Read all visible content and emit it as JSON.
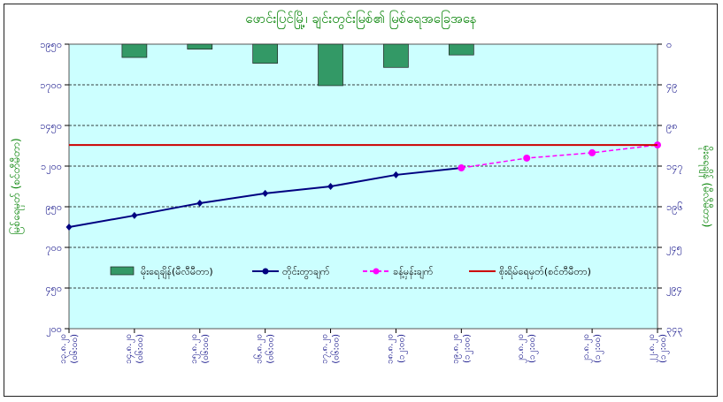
{
  "chart_data": {
    "type": "bar+line",
    "title": "ဖောင်းပြင်မြို့၊ ချင်းတွင်းမြစ်၏ မြစ်ရေအခြေအနေ",
    "ylabel_left": "မြစ်ရေမှတ် (စင်တီမီတာ)",
    "ylabel_right": "မိုးရေချိန် (မီလီမီတာ)",
    "left_axis": {
      "min": 200,
      "max": 1950,
      "ticks": [
        "၁၉၅၀",
        "၁၇၀၀",
        "၁၄၅၀",
        "၁၂၀၀",
        "၉၅၀",
        "၇၀၀",
        "၄၅၀",
        "၂၀၀"
      ],
      "tick_values": [
        1950,
        1700,
        1450,
        1200,
        950,
        700,
        450,
        200
      ]
    },
    "right_axis": {
      "min": 0,
      "max": 343,
      "inverted": true,
      "ticks": [
        "၀",
        "၄၉",
        "၉၈",
        "၁၄၇",
        "၁၉၆",
        "၂၄၅",
        "၂၉၄",
        "၃၄၃"
      ],
      "tick_values": [
        0,
        49,
        98,
        147,
        196,
        245,
        294,
        343
      ]
    },
    "categories": [
      {
        "date": "၁၃.၈.၂၀",
        "time": "(၀၆:၀၀)"
      },
      {
        "date": "၁၄.၈.၂၀",
        "time": "(၀၆:၀၀)"
      },
      {
        "date": "၁၅.၈.၂၀",
        "time": "(၀၆:၀၀)"
      },
      {
        "date": "၁၆.၈.၂၀",
        "time": "(၀၆:၀၀)"
      },
      {
        "date": "၁၇.၈.၂၀",
        "time": "(၀၆:၀၀)"
      },
      {
        "date": "၁၈.၈.၂၀",
        "time": "(၁၂:၀၀)"
      },
      {
        "date": "၁၉.၈.၂၀",
        "time": "(၁၂:၀၀)"
      },
      {
        "date": "၂၀.၈.၂၀",
        "time": "(၁၂:၀၀)"
      },
      {
        "date": "၂၁.၈.၂၀",
        "time": "(၁၂:၀၀)"
      },
      {
        "date": "၂၂.၈.၂၀",
        "time": "(၁၂:၀၀)"
      }
    ],
    "series": [
      {
        "name": "မိုးရေချိန်(မီလီမီတာ)",
        "type": "bar",
        "axis": "right",
        "color": "#339966",
        "values": [
          null,
          16,
          6,
          23,
          50,
          28,
          13,
          null,
          null,
          null
        ]
      },
      {
        "name": "တိုင်းတွာချက်",
        "type": "line",
        "axis": "left",
        "color": "#000080",
        "values": [
          825,
          896,
          972,
          1032,
          1075,
          1146,
          1189,
          null,
          null,
          null
        ]
      },
      {
        "name": "ခန့်မှန်းချက်",
        "type": "line-dashed",
        "axis": "left",
        "color": "#ff00ff",
        "values": [
          null,
          null,
          null,
          null,
          null,
          null,
          1189,
          1249,
          1282,
          1330
        ]
      },
      {
        "name": "စိုးရိမ်ရေမှတ်(စင်တီမီတာ)",
        "type": "hline",
        "axis": "left",
        "color": "#cc0000",
        "value": 1330
      }
    ],
    "grid": true,
    "legend": "bottom-inside"
  }
}
